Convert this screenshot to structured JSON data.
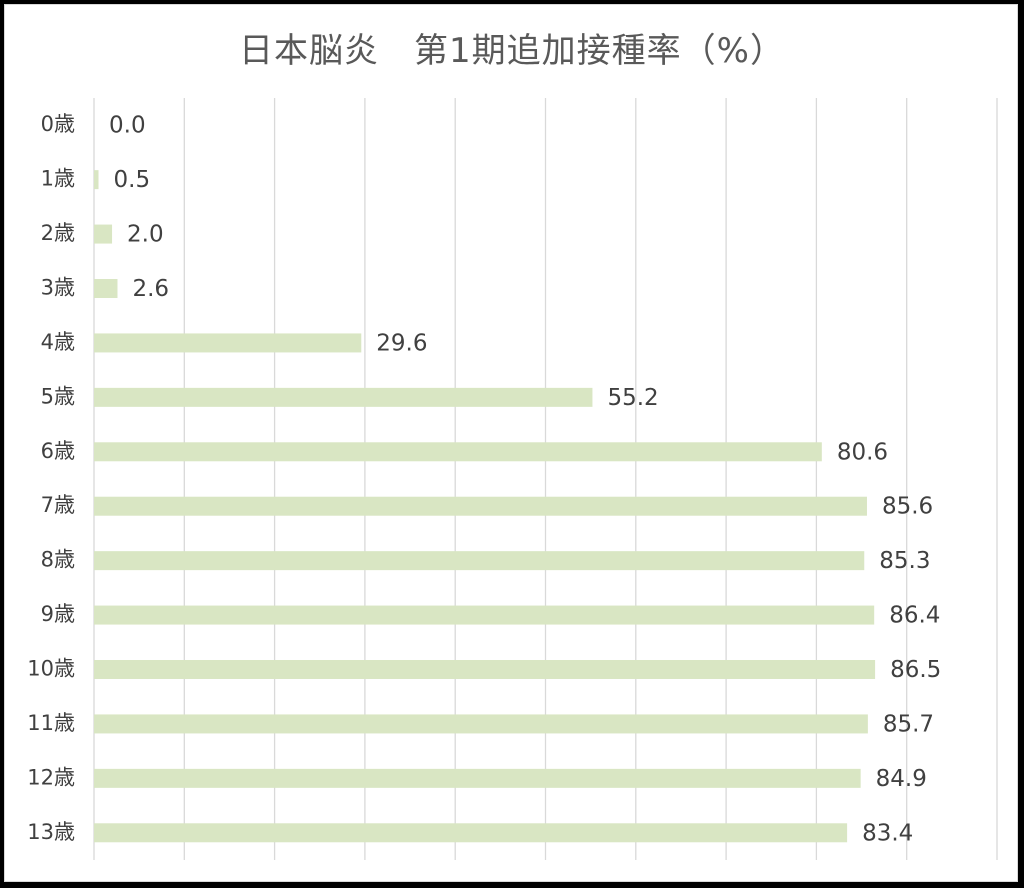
{
  "chart_data": {
    "type": "bar",
    "orientation": "horizontal",
    "title": "日本脳炎　第1期追加接種率（%）",
    "categories": [
      "0歳",
      "1歳",
      "2歳",
      "3歳",
      "4歳",
      "5歳",
      "6歳",
      "7歳",
      "8歳",
      "9歳",
      "10歳",
      "11歳",
      "12歳",
      "13歳"
    ],
    "values": [
      0.0,
      0.5,
      2.0,
      2.6,
      29.6,
      55.2,
      80.6,
      85.6,
      85.3,
      86.4,
      86.5,
      85.7,
      84.9,
      83.4
    ],
    "value_labels": [
      "0.0",
      "0.5",
      "2.0",
      "2.6",
      "29.6",
      "55.2",
      "80.6",
      "85.6",
      "85.3",
      "86.4",
      "86.5",
      "85.7",
      "84.9",
      "83.4"
    ],
    "xlim": [
      0,
      100
    ],
    "grid": true,
    "legend": "none",
    "bar_color": "#d9e6c3",
    "grid_color": "#d9d9d9"
  }
}
